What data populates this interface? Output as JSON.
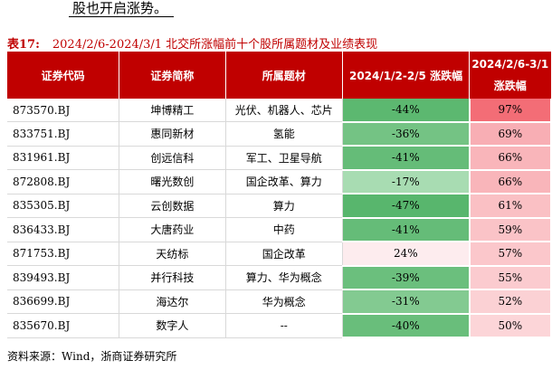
{
  "lead_text": "股也开启涨势。",
  "caption": {
    "label": "表17:",
    "title": "2024/2/6-2024/3/1 北交所涨幅前十个股所属题材及业绩表现"
  },
  "table": {
    "headers": [
      "证券代码",
      "证券简称",
      "所属题材",
      "2024/1/2-2/5 涨跌幅",
      "2024/2/6-3/1 涨跌幅"
    ],
    "rows": [
      {
        "code": "873570.BJ",
        "name": "坤博精工",
        "theme": "光伏、机器人、芯片",
        "change1": "-44%",
        "change2": "97%",
        "bg1": "#5cb870",
        "bg2": "#f36d76"
      },
      {
        "code": "833751.BJ",
        "name": "惠同新材",
        "theme": "氢能",
        "change1": "-36%",
        "change2": "69%",
        "bg1": "#74c384",
        "bg2": "#f8aeb4"
      },
      {
        "code": "831961.BJ",
        "name": "创远信科",
        "theme": "军工、卫星导航",
        "change1": "-41%",
        "change2": "66%",
        "bg1": "#65bc78",
        "bg2": "#f9b5ba"
      },
      {
        "code": "872808.BJ",
        "name": "曙光数创",
        "theme": "国企改革、算力",
        "change1": "-17%",
        "change2": "66%",
        "bg1": "#a8dcb2",
        "bg2": "#f9b5ba"
      },
      {
        "code": "835305.BJ",
        "name": "云创数据",
        "theme": "算力",
        "change1": "-47%",
        "change2": "61%",
        "bg1": "#58b66d",
        "bg2": "#fac0c4"
      },
      {
        "code": "836433.BJ",
        "name": "大唐药业",
        "theme": "中药",
        "change1": "-41%",
        "change2": "59%",
        "bg1": "#65bc78",
        "bg2": "#fac3c7"
      },
      {
        "code": "871753.BJ",
        "name": "天纺标",
        "theme": "国企改革",
        "change1": "24%",
        "change2": "57%",
        "bg1": "#fdecee",
        "bg2": "#fbc7cb"
      },
      {
        "code": "839493.BJ",
        "name": "并行科技",
        "theme": "算力、华为概念",
        "change1": "-39%",
        "change2": "55%",
        "bg1": "#6bbf7d",
        "bg2": "#fbcbcf"
      },
      {
        "code": "836699.BJ",
        "name": "海达尔",
        "theme": "华为概念",
        "change1": "-31%",
        "change2": "52%",
        "bg1": "#83ca91",
        "bg2": "#fbd1d4"
      },
      {
        "code": "835670.BJ",
        "name": "数字人",
        "theme": "--",
        "change1": "-40%",
        "change2": "50%",
        "bg1": "#69be7b",
        "bg2": "#fcd5d8"
      }
    ]
  },
  "source": "资料来源：Wind，浙商证券研究所"
}
